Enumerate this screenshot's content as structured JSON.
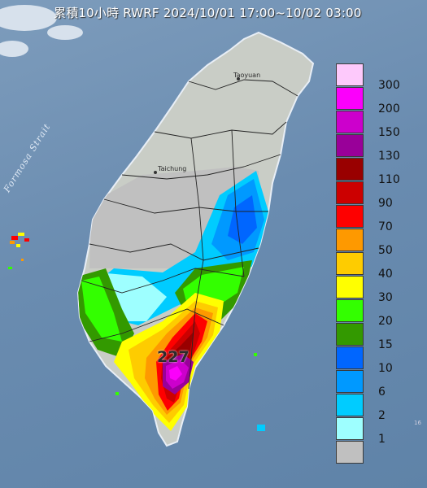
{
  "title": "累積10小時 RWRF 2024/10/01 17:00~10/02 03:00",
  "strait_label": "Formosa Strait",
  "places": {
    "taoyuan": "Taoyuan",
    "taichung": "Taichung"
  },
  "max_rainfall": "227",
  "edge_label": "16",
  "legend": [
    {
      "label": "300",
      "color": "#fdc9fb"
    },
    {
      "label": "200",
      "color": "#fb00fb"
    },
    {
      "label": "150",
      "color": "#cc00cc"
    },
    {
      "label": "130",
      "color": "#990099"
    },
    {
      "label": "110",
      "color": "#990000"
    },
    {
      "label": "90",
      "color": "#cc0000"
    },
    {
      "label": "70",
      "color": "#fe0000"
    },
    {
      "label": "50",
      "color": "#fe9900"
    },
    {
      "label": "40",
      "color": "#fecc00"
    },
    {
      "label": "30",
      "color": "#ffff00"
    },
    {
      "label": "20",
      "color": "#33ff00"
    },
    {
      "label": "15",
      "color": "#339900"
    },
    {
      "label": "10",
      "color": "#0066ff"
    },
    {
      "label": "6",
      "color": "#0099ff"
    },
    {
      "label": "2",
      "color": "#00ccff"
    },
    {
      "label": "1",
      "color": "#9effff"
    },
    {
      "label": "",
      "color": "#c0c0c0"
    }
  ]
}
